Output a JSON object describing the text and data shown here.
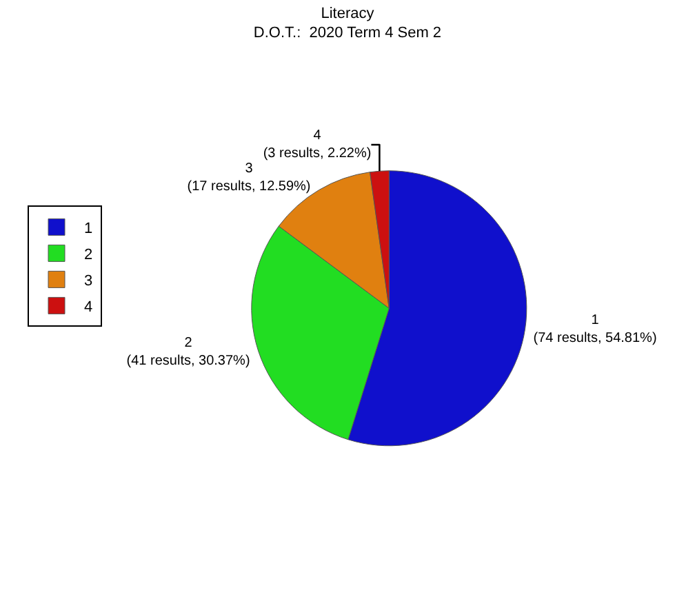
{
  "chart_data": {
    "type": "pie",
    "title": "Literacy",
    "subtitle": "D.O.T.:  2020 Term 4 Sem 2",
    "categories": [
      "1",
      "2",
      "3",
      "4"
    ],
    "values": [
      74,
      41,
      17,
      3
    ],
    "value_labels": [
      "(74 results, 54.81%)",
      "(41 results, 30.37%)",
      "(17 results, 12.59%)",
      "(3 results, 2.22%)"
    ],
    "colors": [
      "#1010cc",
      "#22dd22",
      "#e08010",
      "#cc1010"
    ],
    "legend": "left"
  }
}
